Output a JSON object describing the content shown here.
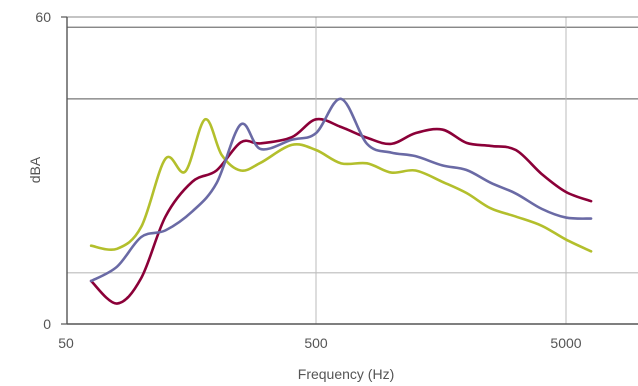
{
  "chart_data": {
    "type": "line",
    "xlabel": "Frequency (Hz)",
    "ylabel": "dBA",
    "x_scale": "log",
    "xlim": [
      50,
      8000
    ],
    "ylim": [
      0,
      60
    ],
    "x_ticks": [
      {
        "value": 50,
        "label": "50"
      },
      {
        "value": 500,
        "label": "500"
      },
      {
        "value": 5000,
        "label": "5000"
      }
    ],
    "y_ticks": [
      {
        "value": 0,
        "label": "0"
      },
      {
        "value": 60,
        "label": "60"
      }
    ],
    "x_grid_values": [
      500,
      5000
    ],
    "y_grid_lines": [
      {
        "value": 10,
        "color": "#bbbbbb"
      },
      {
        "value": 44,
        "color": "#777777"
      },
      {
        "value": 58,
        "color": "#777777"
      }
    ],
    "legend": "none",
    "series": [
      {
        "color": "#b3bf2c",
        "points": [
          [
            63,
            15.3
          ],
          [
            80,
            14.7
          ],
          [
            100,
            19
          ],
          [
            125,
            32.3
          ],
          [
            150,
            29.8
          ],
          [
            180,
            40
          ],
          [
            210,
            33
          ],
          [
            250,
            30
          ],
          [
            300,
            31.5
          ],
          [
            400,
            35
          ],
          [
            500,
            34
          ],
          [
            630,
            31.4
          ],
          [
            800,
            31.4
          ],
          [
            1000,
            29.6
          ],
          [
            1250,
            30
          ],
          [
            1600,
            27.8
          ],
          [
            2000,
            25.6
          ],
          [
            2500,
            22.6
          ],
          [
            3150,
            21
          ],
          [
            4000,
            19.2
          ],
          [
            5000,
            16.5
          ],
          [
            6300,
            14.2
          ]
        ]
      },
      {
        "color": "#8b0038",
        "points": [
          [
            63,
            8.4
          ],
          [
            80,
            4
          ],
          [
            100,
            9
          ],
          [
            125,
            21
          ],
          [
            160,
            27.8
          ],
          [
            200,
            30
          ],
          [
            250,
            35.5
          ],
          [
            300,
            35.3
          ],
          [
            400,
            36.5
          ],
          [
            500,
            40
          ],
          [
            630,
            38.5
          ],
          [
            800,
            36.4
          ],
          [
            1000,
            35.2
          ],
          [
            1250,
            37.3
          ],
          [
            1600,
            38
          ],
          [
            2000,
            35.4
          ],
          [
            2500,
            34.8
          ],
          [
            3150,
            34
          ],
          [
            4000,
            29.3
          ],
          [
            5000,
            25.8
          ],
          [
            6300,
            24
          ]
        ]
      },
      {
        "color": "#6a6aa5",
        "points": [
          [
            63,
            8.4
          ],
          [
            80,
            11.2
          ],
          [
            100,
            17
          ],
          [
            125,
            18.3
          ],
          [
            160,
            22
          ],
          [
            200,
            27.5
          ],
          [
            250,
            39
          ],
          [
            300,
            34.2
          ],
          [
            400,
            36
          ],
          [
            500,
            37.3
          ],
          [
            630,
            44
          ],
          [
            800,
            35.2
          ],
          [
            1000,
            33.5
          ],
          [
            1250,
            32.8
          ],
          [
            1600,
            31
          ],
          [
            2000,
            30.1
          ],
          [
            2500,
            27.6
          ],
          [
            3150,
            25.5
          ],
          [
            4000,
            22.5
          ],
          [
            5000,
            20.8
          ],
          [
            6300,
            20.6
          ]
        ]
      }
    ]
  }
}
